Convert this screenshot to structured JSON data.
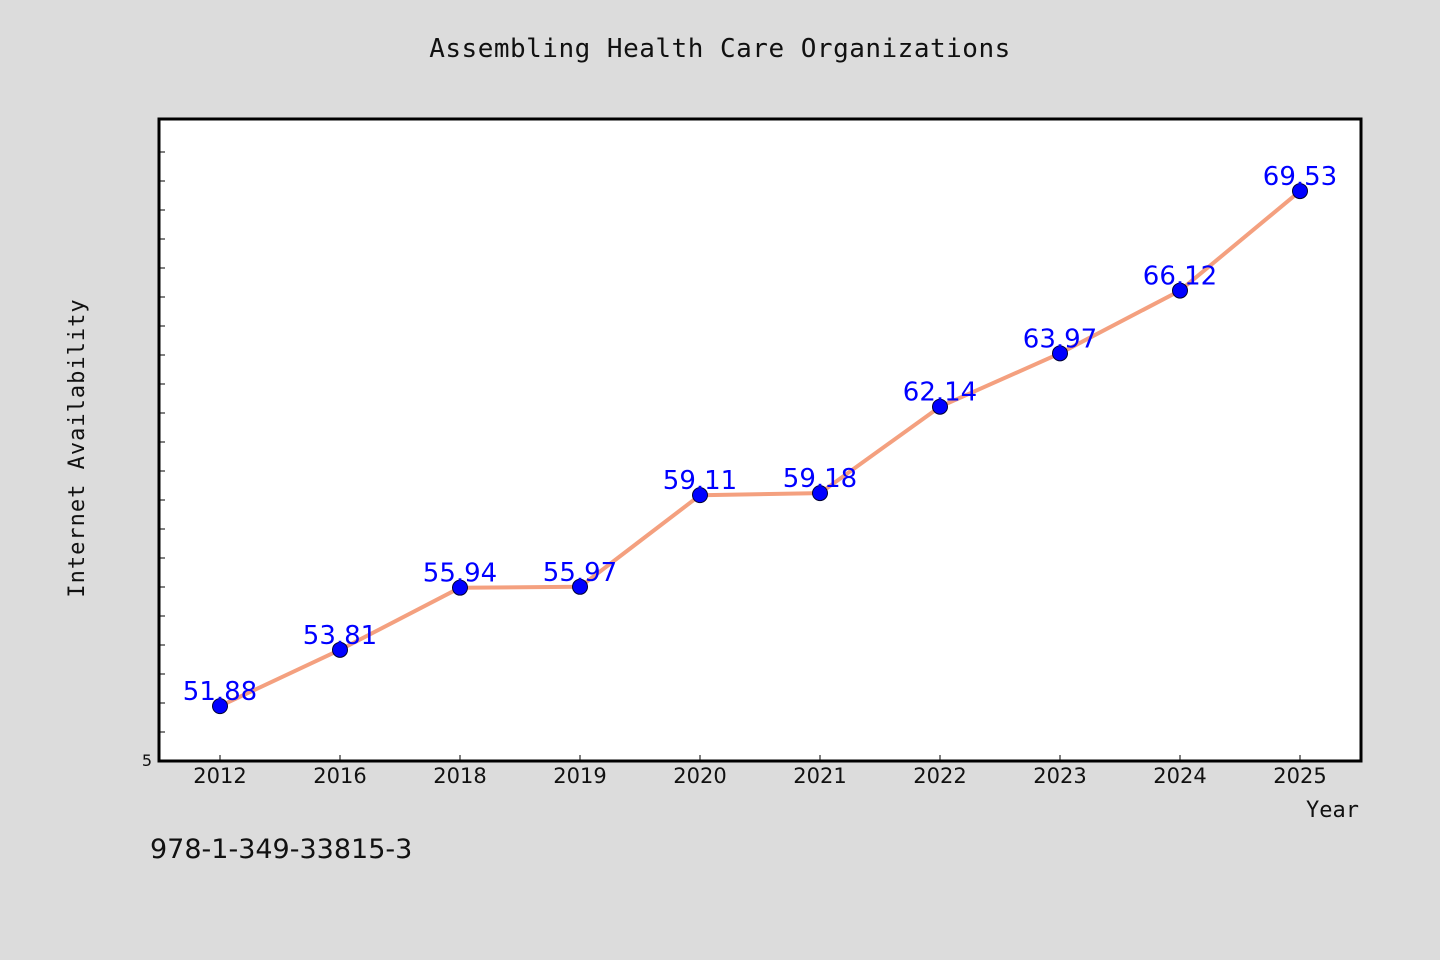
{
  "chart_data": {
    "type": "line",
    "title": "Assembling Health Care Organizations",
    "xlabel": "Year",
    "ylabel": "Internet Availability",
    "categories": [
      "2012",
      "2016",
      "2018",
      "2019",
      "2020",
      "2021",
      "2022",
      "2023",
      "2024",
      "2025"
    ],
    "series": [
      {
        "values": [
          51.88,
          53.81,
          55.94,
          55.97,
          59.11,
          59.18,
          62.14,
          63.97,
          66.12,
          69.53
        ]
      }
    ],
    "data_labels": [
      "51.88",
      "53.81",
      "55.94",
      "55.97",
      "59.11",
      "59.18",
      "62.14",
      "63.97",
      "66.12",
      "69.53"
    ],
    "y_tick_label": "5",
    "ylim": [
      50.0,
      72.0
    ],
    "grid": false,
    "colors": {
      "line": "#f4a07f",
      "marker": "#0000ff",
      "label": "#0000ff",
      "background": "#dcdcdc",
      "plot": "#ffffff"
    }
  },
  "footer_text": "978-1-349-33815-3"
}
